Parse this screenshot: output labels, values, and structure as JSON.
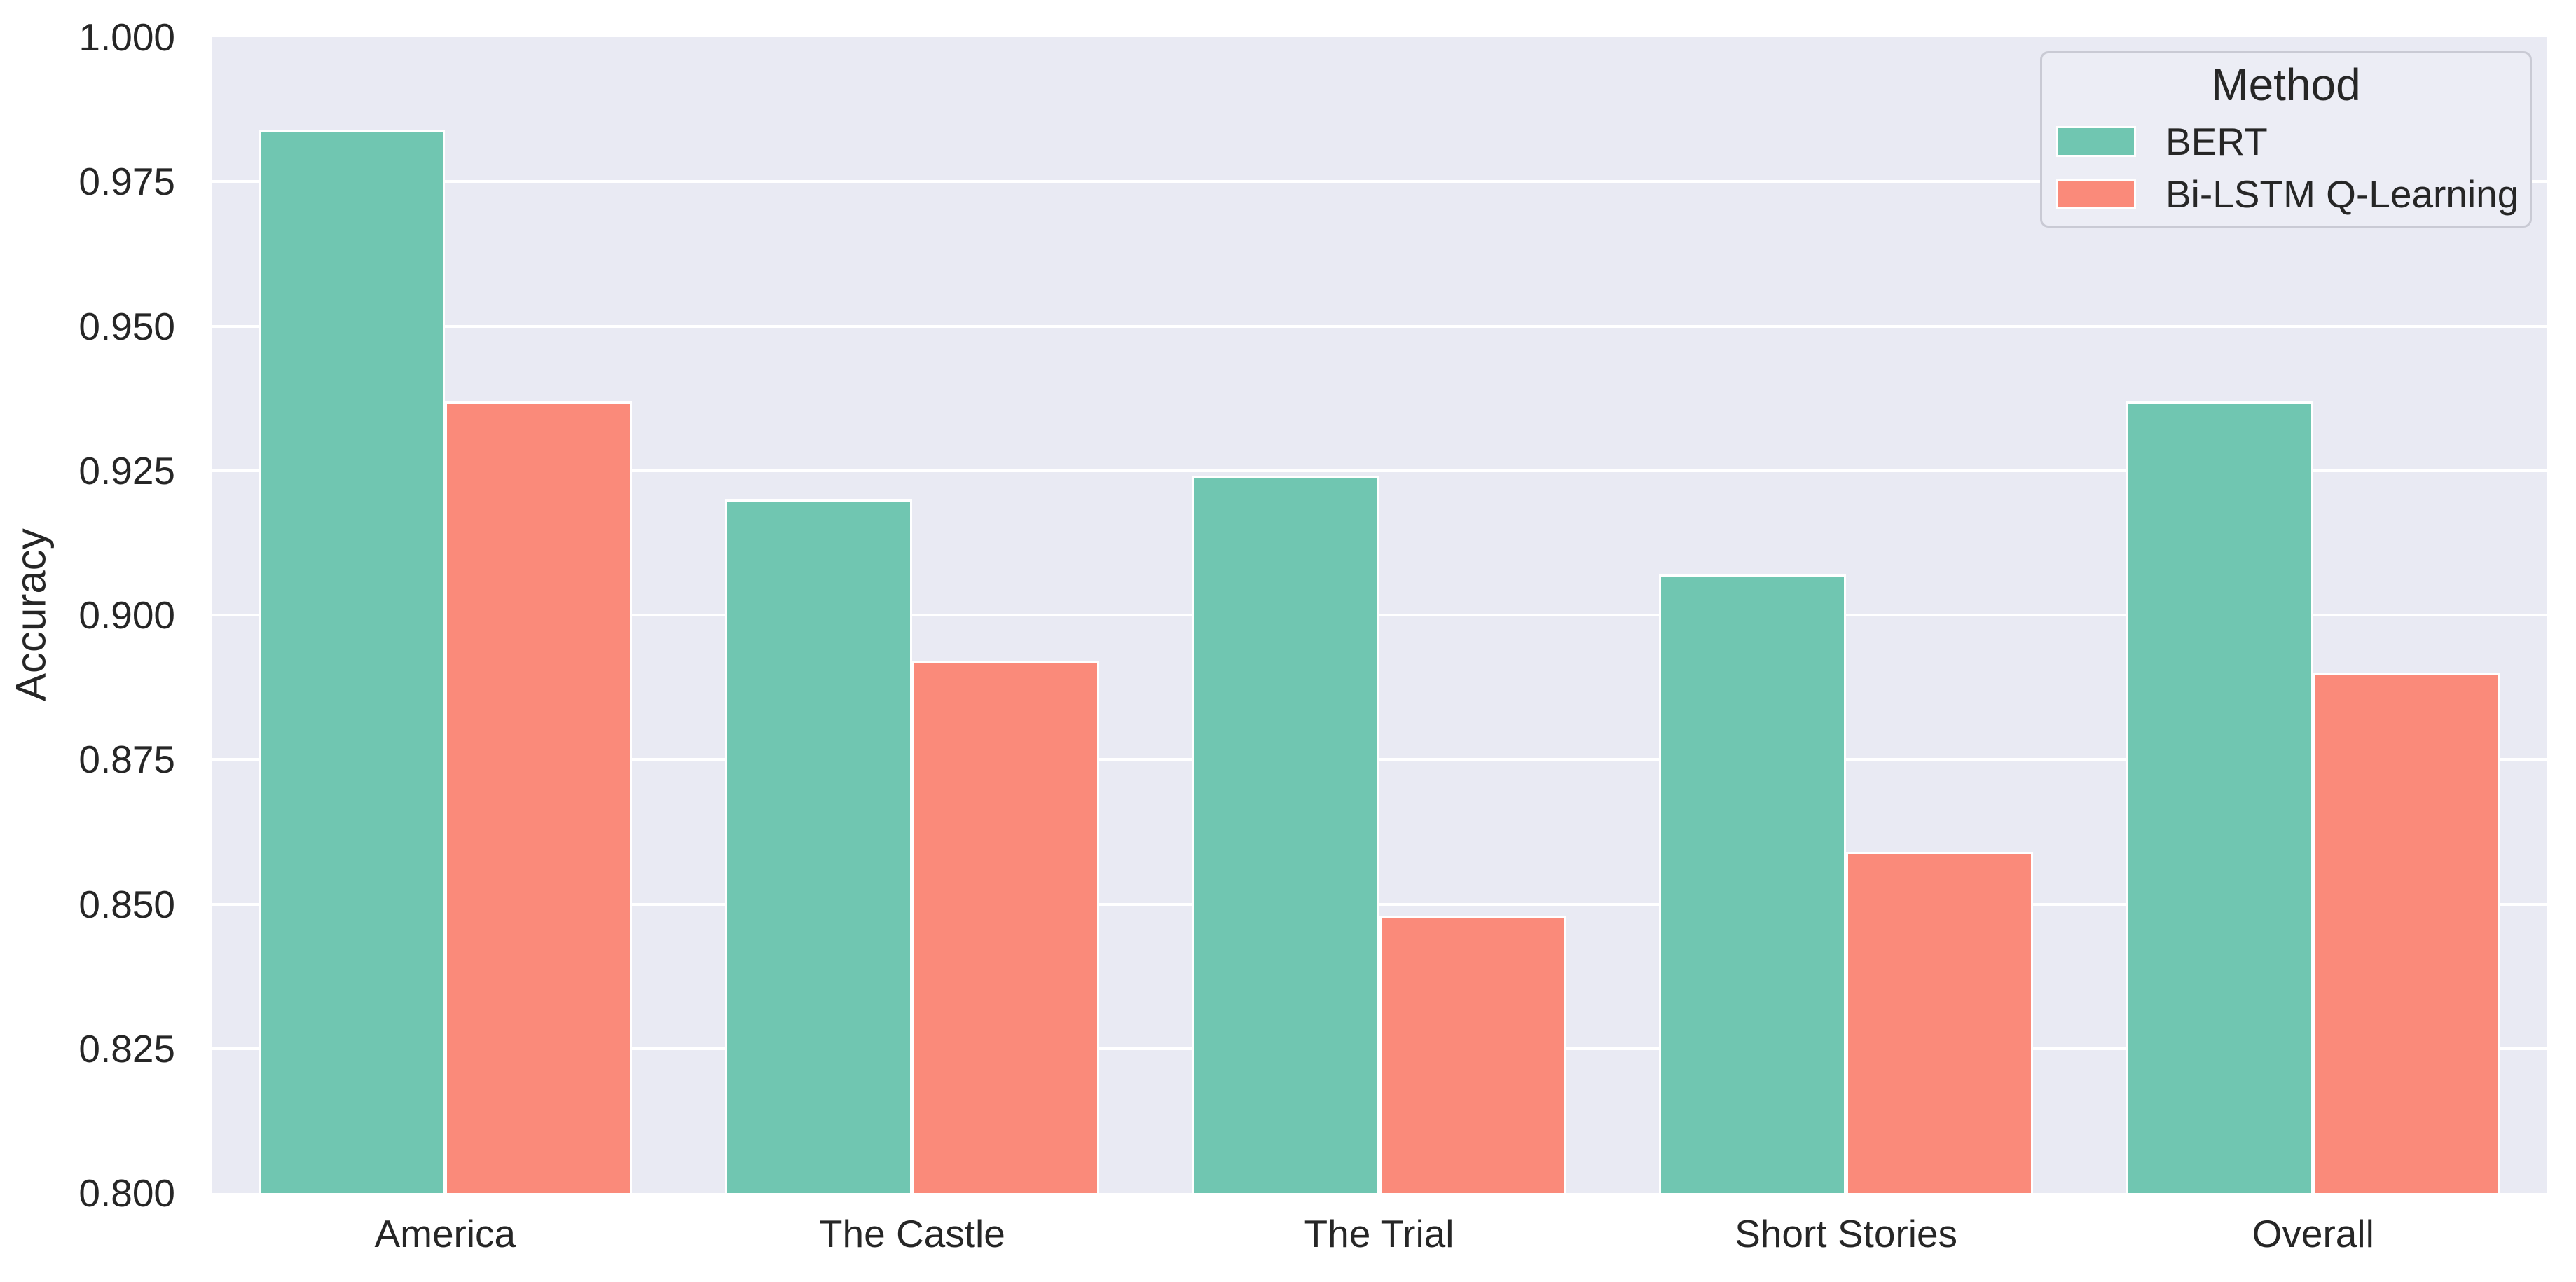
{
  "chart_data": {
    "type": "bar",
    "title": "",
    "categories": [
      "America",
      "The Castle",
      "The Trial",
      "Short Stories",
      "Overall"
    ],
    "series": [
      {
        "name": "BERT",
        "color": "#70c6b1",
        "values": [
          0.984,
          0.92,
          0.924,
          0.907,
          0.937
        ]
      },
      {
        "name": "Bi-LSTM Q-Learning",
        "color": "#fa8a7a",
        "values": [
          0.937,
          0.892,
          0.848,
          0.859,
          0.89
        ]
      }
    ],
    "xlabel": "",
    "ylabel": "Accuracy",
    "ylim": [
      0.8,
      1.0
    ],
    "ytick_step": 0.025,
    "ytick_labels": [
      "1.000",
      "0.975",
      "0.950",
      "0.925",
      "0.900",
      "0.875",
      "0.850",
      "0.825",
      "0.800"
    ],
    "grid": true,
    "legend": {
      "title": "Method",
      "position": "upper-right"
    },
    "colors": {
      "plot_background": "#e9eaf3",
      "gridline": "#ffffff",
      "text": "#262626",
      "bar_edge": "#ffffff",
      "legend_border": "#c9cad4",
      "legend_background": "#ecedf5"
    }
  }
}
